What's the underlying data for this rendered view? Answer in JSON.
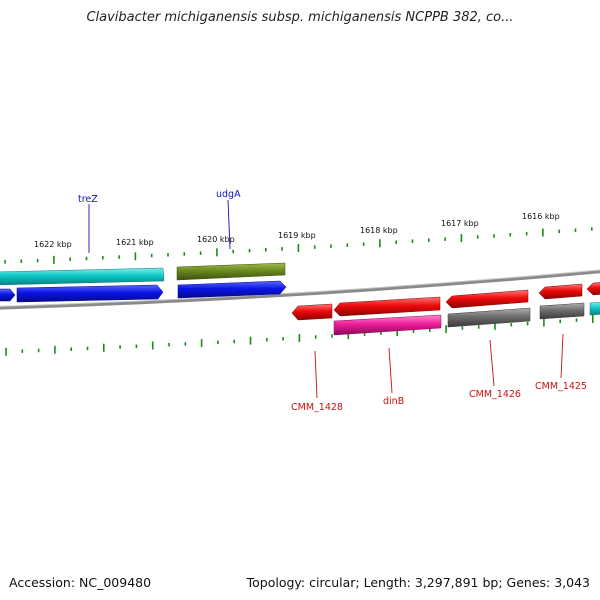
{
  "title": "Clavibacter michiganensis subsp. michiganensis NCPPB 382, co...",
  "accession_label": "Accession: NC_009480",
  "summary": "Topology: circular; Length: 3,297,891 bp; Genes: 3,043",
  "ruler_labels": [
    "1622 kbp",
    "1621 kbp",
    "1620 kbp",
    "1619 kbp",
    "1618 kbp",
    "1617 kbp",
    "1616 kbp"
  ],
  "gene_labels": {
    "treZ": "treZ",
    "udgA": "udgA",
    "CMM_1428": "CMM_1428",
    "dinB": "dinB",
    "CMM_1426": "CMM_1426",
    "CMM_1425": "CMM_1425"
  },
  "colors": {
    "backbone": "#808080",
    "tick": "#1a8a1a",
    "cyan": "#10c8c8",
    "blue": "#0a14e6",
    "olive": "#6b8a1e",
    "red": "#ee0a0a",
    "magenta": "#ee1e9a",
    "gray": "#6e6e6e",
    "label_blue": "#1010cc",
    "label_red": "#cc1010"
  }
}
